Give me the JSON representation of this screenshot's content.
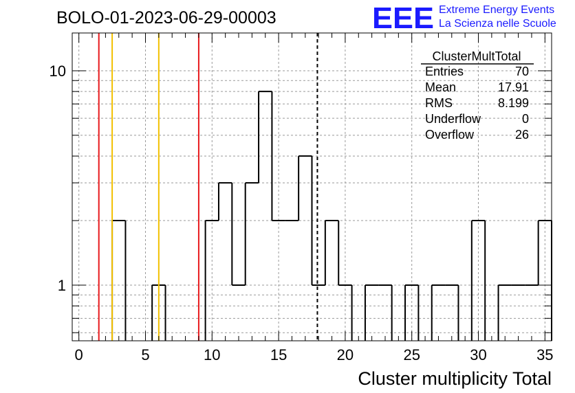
{
  "title": "BOLO-01-2023-06-29-00003",
  "logo": {
    "letters": "EEE",
    "line1": "Extreme Energy Events",
    "line2": "La Scienza nelle Scuole",
    "color": "#1a1aff"
  },
  "stats": {
    "name": "ClusterMultTotal",
    "rows": [
      {
        "label": "Entries",
        "value": "70"
      },
      {
        "label": "Mean",
        "value": "17.91"
      },
      {
        "label": "RMS",
        "value": "8.199"
      },
      {
        "label": "Underflow",
        "value": "0"
      },
      {
        "label": "Overflow",
        "value": "26"
      }
    ]
  },
  "chart_data": {
    "type": "bar",
    "histogram": true,
    "xlabel": "Cluster multiplicity Total",
    "ylabel": "",
    "xlim": [
      -0.5,
      35.5
    ],
    "ylim": [
      0.55,
      15
    ],
    "yscale": "log",
    "grid": true,
    "x_ticks": [
      "0",
      "5",
      "10",
      "15",
      "20",
      "25",
      "30",
      "35"
    ],
    "y_ticks": [
      "1",
      "10"
    ],
    "bin_width": 1,
    "bins": [
      {
        "x": 3,
        "y": 2
      },
      {
        "x": 6,
        "y": 1
      },
      {
        "x": 10,
        "y": 2
      },
      {
        "x": 11,
        "y": 3
      },
      {
        "x": 12,
        "y": 1
      },
      {
        "x": 13,
        "y": 3
      },
      {
        "x": 14,
        "y": 8
      },
      {
        "x": 15,
        "y": 2
      },
      {
        "x": 16,
        "y": 2
      },
      {
        "x": 17,
        "y": 4
      },
      {
        "x": 18,
        "y": 1
      },
      {
        "x": 19,
        "y": 2
      },
      {
        "x": 20,
        "y": 1
      },
      {
        "x": 22,
        "y": 1
      },
      {
        "x": 23,
        "y": 1
      },
      {
        "x": 25,
        "y": 1
      },
      {
        "x": 27,
        "y": 1
      },
      {
        "x": 28,
        "y": 1
      },
      {
        "x": 30,
        "y": 2
      },
      {
        "x": 32,
        "y": 1
      },
      {
        "x": 33,
        "y": 1
      },
      {
        "x": 34,
        "y": 1
      },
      {
        "x": 35,
        "y": 2
      }
    ],
    "vlines": [
      {
        "x": 1.5,
        "color": "#e8191c",
        "style": "solid"
      },
      {
        "x": 2.5,
        "color": "#f2c000",
        "style": "solid"
      },
      {
        "x": 6,
        "color": "#f2c000",
        "style": "solid"
      },
      {
        "x": 9,
        "color": "#e8191c",
        "style": "solid"
      },
      {
        "x": 17.91,
        "color": "#000000",
        "style": "dashed"
      }
    ]
  }
}
